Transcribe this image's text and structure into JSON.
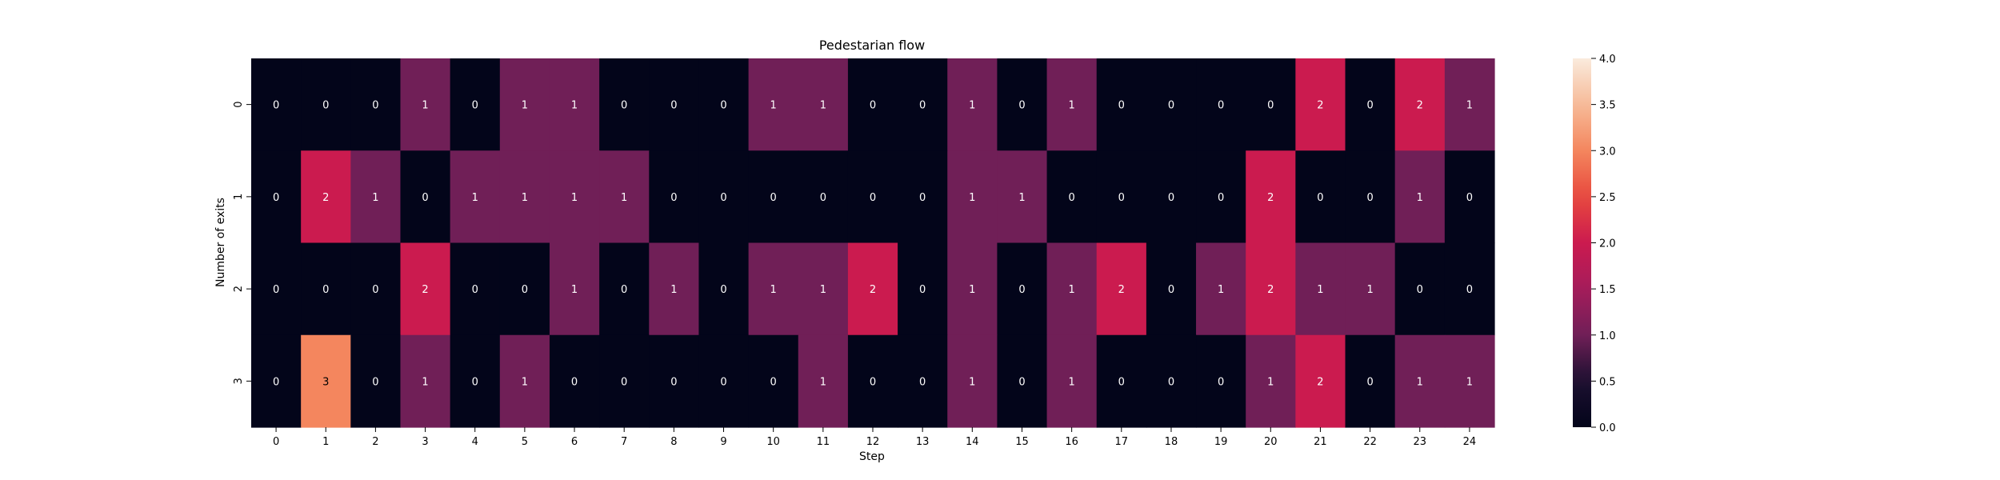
{
  "chart_data": {
    "type": "heatmap",
    "title": "Pedestarian flow",
    "xlabel": "Step",
    "ylabel": "Number of exits",
    "x_categories": [
      "0",
      "1",
      "2",
      "3",
      "4",
      "5",
      "6",
      "7",
      "8",
      "9",
      "10",
      "11",
      "12",
      "13",
      "14",
      "15",
      "16",
      "17",
      "18",
      "19",
      "20",
      "21",
      "22",
      "23",
      "24"
    ],
    "y_categories": [
      "0",
      "1",
      "2",
      "3"
    ],
    "values": [
      [
        0,
        0,
        0,
        1,
        0,
        1,
        1,
        0,
        0,
        0,
        1,
        1,
        0,
        0,
        1,
        0,
        1,
        0,
        0,
        0,
        0,
        2,
        0,
        2,
        1
      ],
      [
        0,
        2,
        1,
        0,
        1,
        1,
        1,
        1,
        0,
        0,
        0,
        0,
        0,
        0,
        1,
        1,
        0,
        0,
        0,
        0,
        2,
        0,
        0,
        1,
        0
      ],
      [
        0,
        0,
        0,
        2,
        0,
        0,
        1,
        0,
        1,
        0,
        1,
        1,
        2,
        0,
        1,
        0,
        1,
        2,
        0,
        1,
        2,
        1,
        1,
        0,
        0
      ],
      [
        0,
        3,
        0,
        1,
        0,
        1,
        0,
        0,
        0,
        0,
        0,
        1,
        0,
        0,
        1,
        0,
        1,
        0,
        0,
        0,
        1,
        2,
        0,
        1,
        1
      ]
    ],
    "color_range": [
      0,
      4
    ],
    "colorbar_ticks": [
      "0.0",
      "0.5",
      "1.0",
      "1.5",
      "2.0",
      "2.5",
      "3.0",
      "3.5",
      "4.0"
    ],
    "colormap": "rocket",
    "grid": false,
    "legend": "colorbar-right"
  }
}
